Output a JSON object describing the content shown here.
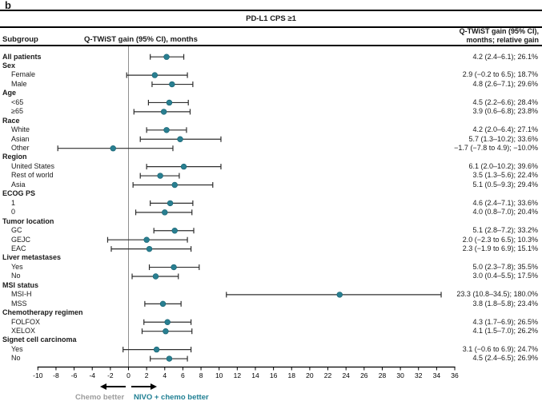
{
  "panel_label": "b",
  "header": {
    "title": "PD-L1 CPS ≥1",
    "col_subgroup": "Subgroup",
    "col_plot": "Q-TWiST gain (95% CI), months",
    "col_values": "Q-TWiST gain (95% CI),\nmonths; relative gain"
  },
  "footer": {
    "left_label": "Chemo better",
    "right_label": "NIVO + chemo better"
  },
  "colors": {
    "marker": "#297f91",
    "marker_edge": "#14606f",
    "ci_line": "#2e2e2e",
    "zero_line": "#909090",
    "axis": "#000000",
    "footer_left": "#9c9c9c",
    "footer_right": "#1f7f93"
  },
  "chart_data": {
    "type": "forest",
    "title": "PD-L1 CPS ≥1",
    "xlabel": "Q-TWiST gain (95% CI), months",
    "xlim": [
      -10,
      36
    ],
    "x_ticks": [
      -10,
      -8,
      -6,
      -4,
      -2,
      0,
      2,
      4,
      6,
      8,
      10,
      12,
      14,
      16,
      18,
      20,
      22,
      24,
      26,
      28,
      30,
      32,
      34,
      36
    ],
    "zero_line": 0,
    "rows": [
      {
        "label": "All patients",
        "style": "bold",
        "indent": false,
        "estimate": 4.2,
        "ci": [
          2.4,
          6.1
        ],
        "display": "4.2 (2.4–6.1); 26.1%"
      },
      {
        "label": "Sex",
        "style": "bold",
        "indent": false,
        "estimate": null,
        "ci": null,
        "display": ""
      },
      {
        "label": "Female",
        "style": "normal",
        "indent": true,
        "estimate": 2.9,
        "ci": [
          -0.2,
          6.5
        ],
        "display": "2.9 (−0.2 to 6.5); 18.7%"
      },
      {
        "label": "Male",
        "style": "normal",
        "indent": true,
        "estimate": 4.8,
        "ci": [
          2.6,
          7.1
        ],
        "display": "4.8 (2.6–7.1); 29.6%"
      },
      {
        "label": "Age",
        "style": "bold",
        "indent": false,
        "estimate": null,
        "ci": null,
        "display": ""
      },
      {
        "label": "<65",
        "style": "normal",
        "indent": true,
        "estimate": 4.5,
        "ci": [
          2.2,
          6.6
        ],
        "display": "4.5 (2.2–6.6); 28.4%"
      },
      {
        "label": "≥65",
        "style": "normal",
        "indent": true,
        "estimate": 3.9,
        "ci": [
          0.6,
          6.8
        ],
        "display": "3.9 (0.6–6.8); 23.8%"
      },
      {
        "label": "Race",
        "style": "bold",
        "indent": false,
        "estimate": null,
        "ci": null,
        "display": ""
      },
      {
        "label": "White",
        "style": "normal",
        "indent": true,
        "estimate": 4.2,
        "ci": [
          2.0,
          6.4
        ],
        "display": "4.2 (2.0–6.4); 27.1%"
      },
      {
        "label": "Asian",
        "style": "normal",
        "indent": true,
        "estimate": 5.7,
        "ci": [
          1.3,
          10.2
        ],
        "display": "5.7 (1.3–10.2); 33.6%"
      },
      {
        "label": "Other",
        "style": "normal",
        "indent": true,
        "estimate": -1.7,
        "ci": [
          -7.8,
          4.9
        ],
        "display": "−1.7 (−7.8 to 4.9); −10.0%"
      },
      {
        "label": "Region",
        "style": "bold",
        "indent": false,
        "estimate": null,
        "ci": null,
        "display": ""
      },
      {
        "label": "United States",
        "style": "normal",
        "indent": true,
        "estimate": 6.1,
        "ci": [
          2.0,
          10.2
        ],
        "display": "6.1 (2.0–10.2); 39.6%"
      },
      {
        "label": "Rest of world",
        "style": "normal",
        "indent": true,
        "estimate": 3.5,
        "ci": [
          1.3,
          5.6
        ],
        "display": "3.5 (1.3–5.6); 22.4%"
      },
      {
        "label": "Asia",
        "style": "normal",
        "indent": true,
        "estimate": 5.1,
        "ci": [
          0.5,
          9.3
        ],
        "display": "5.1 (0.5–9.3); 29.4%"
      },
      {
        "label": "ECOG PS",
        "style": "bold",
        "indent": false,
        "estimate": null,
        "ci": null,
        "display": ""
      },
      {
        "label": "1",
        "style": "normal",
        "indent": true,
        "estimate": 4.6,
        "ci": [
          2.4,
          7.1
        ],
        "display": "4.6 (2.4–7.1); 33.6%"
      },
      {
        "label": "0",
        "style": "normal",
        "indent": true,
        "estimate": 4.0,
        "ci": [
          0.8,
          7.0
        ],
        "display": "4.0 (0.8–7.0); 20.4%"
      },
      {
        "label": "Tumor location",
        "style": "bold",
        "indent": false,
        "estimate": null,
        "ci": null,
        "display": ""
      },
      {
        "label": "GC",
        "style": "normal",
        "indent": true,
        "estimate": 5.1,
        "ci": [
          2.8,
          7.2
        ],
        "display": "5.1 (2.8–7.2); 33.2%"
      },
      {
        "label": "GEJC",
        "style": "normal",
        "indent": true,
        "estimate": 2.0,
        "ci": [
          -2.3,
          6.5
        ],
        "display": "2.0 (−2.3 to 6.5); 10.3%"
      },
      {
        "label": "EAC",
        "style": "normal",
        "indent": true,
        "estimate": 2.3,
        "ci": [
          -1.9,
          6.9
        ],
        "display": "2.3 (−1.9 to 6.9); 15.1%"
      },
      {
        "label": "Liver metastases",
        "style": "bold",
        "indent": false,
        "estimate": null,
        "ci": null,
        "display": ""
      },
      {
        "label": "Yes",
        "style": "normal",
        "indent": true,
        "estimate": 5.0,
        "ci": [
          2.3,
          7.8
        ],
        "display": "5.0 (2.3–7.8); 35.5%"
      },
      {
        "label": "No",
        "style": "normal",
        "indent": true,
        "estimate": 3.0,
        "ci": [
          0.4,
          5.5
        ],
        "display": "3.0 (0.4–5.5); 17.5%"
      },
      {
        "label": "MSI status",
        "style": "bold",
        "indent": false,
        "estimate": null,
        "ci": null,
        "display": ""
      },
      {
        "label": "MSI-H",
        "style": "normal",
        "indent": true,
        "estimate": 23.3,
        "ci": [
          10.8,
          34.5
        ],
        "display": "23.3 (10.8–34.5); 180.0%"
      },
      {
        "label": "MSS",
        "style": "normal",
        "indent": true,
        "estimate": 3.8,
        "ci": [
          1.8,
          5.8
        ],
        "display": "3.8 (1.8–5.8); 23.4%"
      },
      {
        "label": "Chemotherapy regimen",
        "style": "bold",
        "indent": false,
        "estimate": null,
        "ci": null,
        "display": ""
      },
      {
        "label": "FOLFOX",
        "style": "normal",
        "indent": true,
        "estimate": 4.3,
        "ci": [
          1.7,
          6.9
        ],
        "display": "4.3 (1.7–6.9); 26.5%"
      },
      {
        "label": "XELOX",
        "style": "normal",
        "indent": true,
        "estimate": 4.1,
        "ci": [
          1.5,
          7.0
        ],
        "display": "4.1 (1.5–7.0); 26.2%"
      },
      {
        "label": "Signet cell carcinoma",
        "style": "bold",
        "indent": false,
        "estimate": null,
        "ci": null,
        "display": ""
      },
      {
        "label": "Yes",
        "style": "normal",
        "indent": true,
        "estimate": 3.1,
        "ci": [
          -0.6,
          6.9
        ],
        "display": "3.1 (−0.6 to 6.9); 24.7%"
      },
      {
        "label": "No",
        "style": "normal",
        "indent": true,
        "estimate": 4.5,
        "ci": [
          2.4,
          6.5
        ],
        "display": "4.5 (2.4–6.5); 26.9%"
      }
    ]
  }
}
